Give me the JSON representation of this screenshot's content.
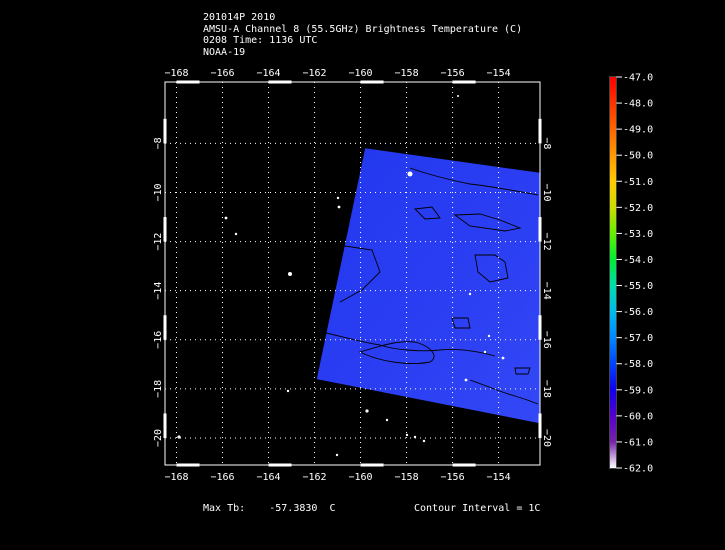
{
  "header": {
    "storm_id": "201014P 2010",
    "product": "AMSU-A Channel 8 (55.5GHz) Brightness Temperature (C)",
    "time": "0208 Time: 1136 UTC",
    "satellite": "NOAA-19"
  },
  "map": {
    "lon_range": [
      -168.5,
      -152.2
    ],
    "lat_range": [
      -5.5,
      -21.1
    ],
    "lon_ticks": [
      -168,
      -166,
      -164,
      -162,
      -160,
      -158,
      -156,
      -154
    ],
    "lat_ticks": [
      -8,
      -10,
      -12,
      -14,
      -16,
      -18,
      -20
    ],
    "lon_labels": [
      "−168",
      "−166",
      "−164",
      "−162",
      "−160",
      "−158",
      "−156",
      "−154"
    ],
    "lat_labels": [
      "−8",
      "−10",
      "−12",
      "−14",
      "−16",
      "−18",
      "−20"
    ],
    "grid": "dotted",
    "swath_color": "#2a3df2",
    "swath_corners": [
      {
        "lon": -159.8,
        "lat": -8.2
      },
      {
        "lon": -152.2,
        "lat": -9.2
      },
      {
        "lon": -152.2,
        "lat": -19.4
      },
      {
        "lon": -161.9,
        "lat": -17.6
      }
    ]
  },
  "colorbar": {
    "labels": [
      "-47.0",
      "-48.0",
      "-49.0",
      "-50.0",
      "-51.0",
      "-52.0",
      "-53.0",
      "-54.0",
      "-55.0",
      "-56.0",
      "-57.0",
      "-58.0",
      "-59.0",
      "-60.0",
      "-61.0",
      "-62.0"
    ],
    "colors": [
      "#ff0000",
      "#ff3300",
      "#ff6600",
      "#ff9900",
      "#ffcc00",
      "#ccdd00",
      "#66ee00",
      "#00ee33",
      "#00ddaa",
      "#00bbee",
      "#0088ff",
      "#0044ff",
      "#1100ee",
      "#5500cc",
      "#7722aa",
      "#ffffff"
    ]
  },
  "footer": {
    "max_tb_label": "Max Tb:",
    "max_tb_value": "-57.3830",
    "max_tb_unit": "C",
    "contour_interval": "Contour Interval = 1C"
  }
}
